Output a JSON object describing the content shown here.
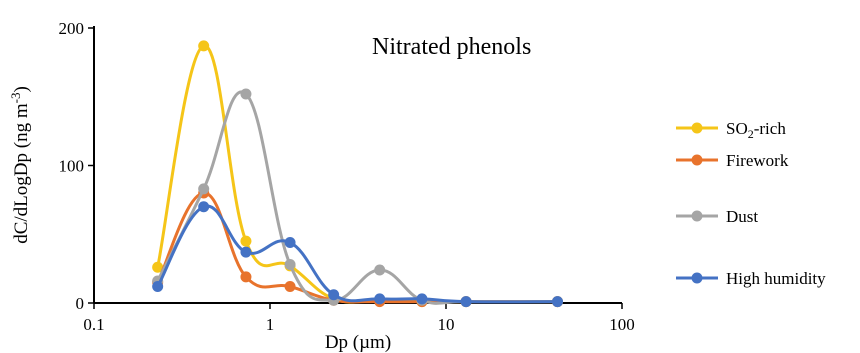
{
  "chart_data": {
    "type": "line",
    "title": "Nitrated phenols",
    "xlabel": "Dp (µm)",
    "ylabel": "dC/dLogDp (ng m",
    "ylabel_sup": "-3",
    "ylabel_close": ")",
    "xscale": "log",
    "xlim": [
      0.1,
      100
    ],
    "ylim": [
      0,
      200
    ],
    "xticks": [
      0.1,
      1,
      10,
      100
    ],
    "xtick_labels": [
      "0.1",
      "1",
      "10",
      "100"
    ],
    "yticks": [
      0,
      100,
      200
    ],
    "ytick_labels": [
      "0",
      "100",
      "200"
    ],
    "grid": false,
    "legend_position": "right",
    "series": [
      {
        "name": "SO2-rich",
        "legend_main": "SO",
        "legend_sub": "2",
        "legend_tail": "-rich",
        "color": "#f5c518",
        "x": [
          0.23,
          0.42,
          0.73,
          1.3,
          2.3,
          4.2,
          7.3,
          13,
          43
        ],
        "y": [
          26,
          187,
          45,
          27,
          3,
          2,
          1,
          1,
          1
        ]
      },
      {
        "name": "Firework",
        "color": "#e8732c",
        "x": [
          0.23,
          0.42,
          0.73,
          1.3,
          2.3,
          4.2,
          7.3,
          13,
          43
        ],
        "y": [
          15,
          80,
          19,
          12,
          2,
          1,
          1,
          1,
          1
        ]
      },
      {
        "name": "Dust",
        "color": "#a5a5a5",
        "x": [
          0.23,
          0.42,
          0.73,
          1.3,
          2.3,
          4.2,
          7.3,
          13,
          43
        ],
        "y": [
          16,
          83,
          152,
          28,
          2,
          24,
          2,
          1,
          1
        ]
      },
      {
        "name": "High humidity",
        "color": "#4472c4",
        "x": [
          0.23,
          0.42,
          0.73,
          1.3,
          2.3,
          4.2,
          7.3,
          13,
          43
        ],
        "y": [
          12,
          70,
          37,
          44,
          6,
          3,
          3,
          1,
          1
        ]
      }
    ]
  }
}
